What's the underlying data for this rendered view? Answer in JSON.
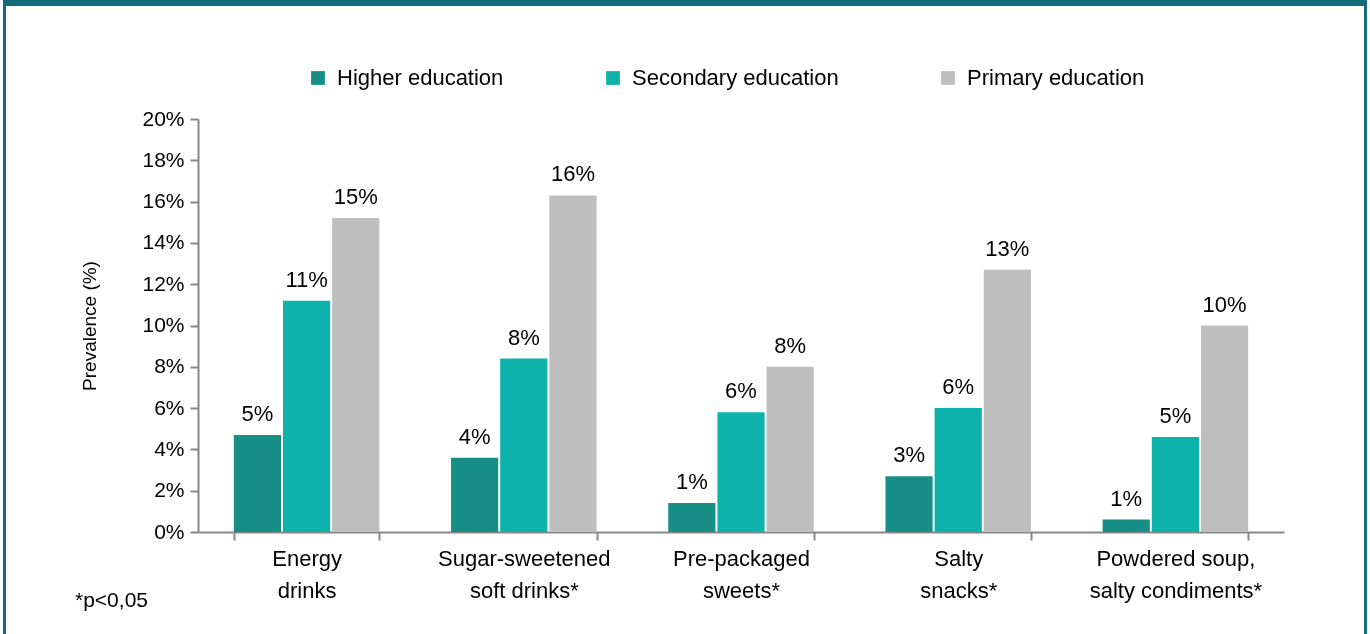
{
  "chart_data": {
    "type": "bar",
    "ylabel": "Prevalence (%)",
    "categories": [
      "Energy drinks",
      "Sugar-sweetened soft drinks*",
      "Pre-packaged sweets*",
      "Salty snacks*",
      "Powdered soup, salty condiments*"
    ],
    "series": [
      {
        "name": "Higher education",
        "color": "#178f86",
        "values": [
          4.7,
          3.6,
          1.4,
          2.7,
          0.6
        ],
        "value_labels": [
          "5%",
          "4%",
          "1%",
          "3%",
          "1%"
        ]
      },
      {
        "name": "Secondary education",
        "color": "#0db3ab",
        "values": [
          11.2,
          8.4,
          5.8,
          6.0,
          4.6
        ],
        "value_labels": [
          "11%",
          "8%",
          "6%",
          "6%",
          "5%"
        ]
      },
      {
        "name": "Primary education",
        "color": "#bebebe",
        "values": [
          15.2,
          16.3,
          8.0,
          12.7,
          10.0
        ],
        "value_labels": [
          "15%",
          "16%",
          "8%",
          "13%",
          "10%"
        ]
      }
    ],
    "ylim": [
      0,
      20
    ],
    "yticks": [
      {
        "value": 0,
        "label": "0%"
      },
      {
        "value": 2,
        "label": "2%"
      },
      {
        "value": 4,
        "label": "4%"
      },
      {
        "value": 6,
        "label": "6%"
      },
      {
        "value": 8,
        "label": "8%"
      },
      {
        "value": 10,
        "label": "10%"
      },
      {
        "value": 12,
        "label": "12%"
      },
      {
        "value": 14,
        "label": "14%"
      },
      {
        "value": 16,
        "label": "16%"
      },
      {
        "value": 18,
        "label": "18%"
      },
      {
        "value": 20,
        "label": "20%"
      }
    ],
    "grid": false,
    "legend": "top",
    "annotations": [
      "*p<0,05"
    ]
  }
}
